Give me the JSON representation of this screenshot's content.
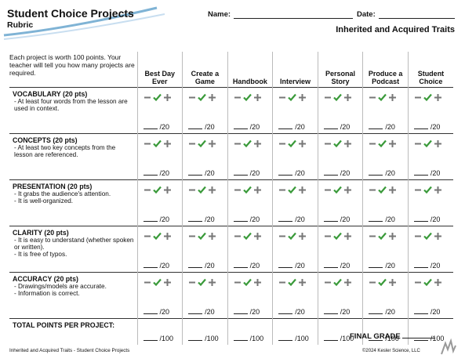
{
  "header": {
    "title": "Student Choice Projects",
    "subtitle": "Rubric",
    "name_label": "Name:",
    "date_label": "Date:",
    "unit": "Inherited and Acquired Traits"
  },
  "table": {
    "intro": "Each project is worth 100 points. Your teacher will tell you how many projects are required.",
    "columns": [
      "Best Day Ever",
      "Create a Game",
      "Handbook",
      "Interview",
      "Personal Story",
      "Produce a Podcast",
      "Student Choice"
    ],
    "rows": [
      {
        "title": "VOCABULARY (20 pts)",
        "bullets": [
          "- At least four words from the lesson are used in context."
        ],
        "score": "/20"
      },
      {
        "title": "CONCEPTS (20 pts)",
        "bullets": [
          "- At least two key concepts from the lesson are referenced."
        ],
        "score": "/20"
      },
      {
        "title": "PRESENTATION (20 pts)",
        "bullets": [
          "- It grabs the audience's attention.",
          "- It is well-organized."
        ],
        "score": "/20"
      },
      {
        "title": "CLARITY (20 pts)",
        "bullets": [
          "- It is easy to understand (whether spoken or written).",
          "- It is free of typos."
        ],
        "score": "/20"
      },
      {
        "title": "ACCURACY (20 pts)",
        "bullets": [
          "- Drawings/models are accurate.",
          "- Information is correct."
        ],
        "score": "/20"
      }
    ],
    "total": {
      "label": "TOTAL POINTS PER PROJECT:",
      "score": "/100"
    }
  },
  "footer": {
    "final_grade": "FINAL GRADE",
    "left": "Inherited and Acquired Traits - Student Choice Projects",
    "right": "©2024  Kesler Science, LLC"
  }
}
